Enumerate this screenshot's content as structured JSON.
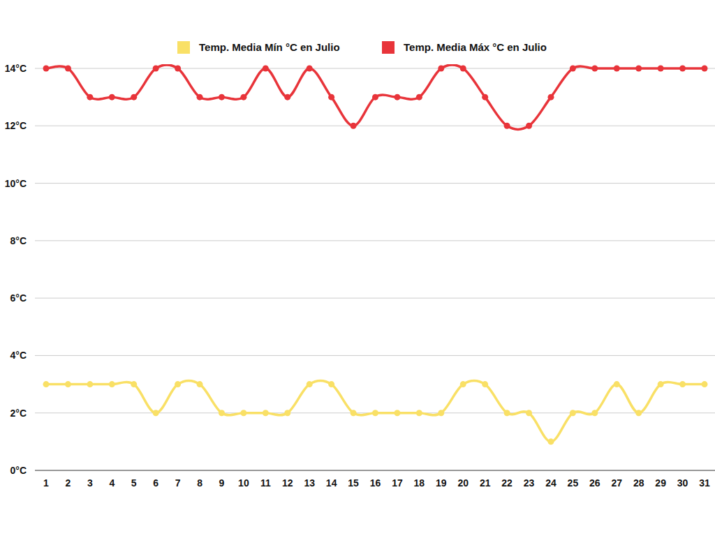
{
  "chart_data": {
    "type": "line",
    "categories": [
      "1",
      "2",
      "3",
      "4",
      "5",
      "6",
      "7",
      "8",
      "9",
      "10",
      "11",
      "12",
      "13",
      "14",
      "15",
      "16",
      "17",
      "18",
      "19",
      "20",
      "21",
      "22",
      "23",
      "24",
      "25",
      "26",
      "27",
      "28",
      "29",
      "30",
      "31"
    ],
    "series": [
      {
        "name": "Temp. Media Mín °C en Julio",
        "color": "#f9e066",
        "marker": "circle",
        "line_style": "smooth",
        "values": [
          3,
          3,
          3,
          3,
          3,
          2,
          3,
          3,
          2,
          2,
          2,
          2,
          3,
          3,
          2,
          2,
          2,
          2,
          2,
          3,
          3,
          2,
          2,
          1,
          2,
          2,
          3,
          2,
          3,
          3,
          3
        ]
      },
      {
        "name": "Temp. Media Máx °C en Julio",
        "color": "#e8343a",
        "marker": "circle",
        "line_style": "smooth",
        "values": [
          14,
          14,
          13,
          13,
          13,
          14,
          14,
          13,
          13,
          13,
          14,
          13,
          14,
          13,
          12,
          13,
          13,
          13,
          14,
          14,
          13,
          12,
          12,
          13,
          14,
          14,
          14,
          14,
          14,
          14,
          14
        ]
      }
    ],
    "ylim": [
      0,
      14
    ],
    "yticks": [
      {
        "value": 0,
        "label": "0°C"
      },
      {
        "value": 2,
        "label": "2°C"
      },
      {
        "value": 4,
        "label": "4°C"
      },
      {
        "value": 6,
        "label": "6°C"
      },
      {
        "value": 8,
        "label": "8°C"
      },
      {
        "value": 10,
        "label": "10°C"
      },
      {
        "value": 12,
        "label": "12°C"
      },
      {
        "value": 14,
        "label": "14°C"
      }
    ],
    "grid": true,
    "legend": "top"
  }
}
